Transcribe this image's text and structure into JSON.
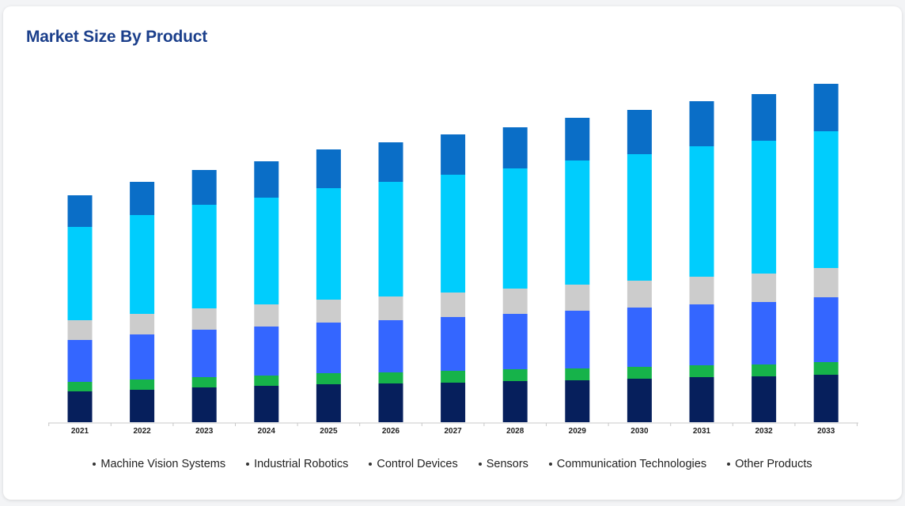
{
  "title": "Market Size By Product",
  "chart_data": {
    "type": "bar",
    "stacked": true,
    "title": "Market Size By Product",
    "xlabel": "",
    "ylabel": "",
    "grid": false,
    "legend_position": "bottom",
    "categories": [
      "2021",
      "2022",
      "2023",
      "2024",
      "2025",
      "2026",
      "2027",
      "2028",
      "2029",
      "2030",
      "2031",
      "2032",
      "2033"
    ],
    "series": [
      {
        "name": "Machine Vision Systems",
        "color": "#061f5c",
        "values": [
          39,
          41,
          44,
          46,
          48,
          49,
          50,
          52,
          53,
          55,
          57,
          58,
          60
        ]
      },
      {
        "name": "Industrial Robotics",
        "color": "#16b34a",
        "values": [
          12,
          13,
          13,
          13,
          14,
          14,
          15,
          15,
          15,
          15,
          15,
          15,
          16
        ]
      },
      {
        "name": "Control Devices",
        "color": "#3466ff",
        "values": [
          53,
          57,
          60,
          62,
          64,
          66,
          68,
          70,
          73,
          75,
          77,
          79,
          82
        ]
      },
      {
        "name": "Sensors",
        "color": "#cccccc",
        "values": [
          25,
          26,
          27,
          28,
          29,
          30,
          31,
          32,
          33,
          34,
          35,
          36,
          37
        ]
      },
      {
        "name": "Communication Technologies",
        "color": "#00cdfd",
        "values": [
          118,
          125,
          131,
          135,
          141,
          145,
          149,
          152,
          157,
          160,
          165,
          168,
          173
        ]
      },
      {
        "name": "Other Products",
        "color": "#0a6ec7",
        "values": [
          40,
          42,
          44,
          46,
          49,
          50,
          51,
          52,
          54,
          56,
          57,
          59,
          60
        ]
      }
    ]
  }
}
